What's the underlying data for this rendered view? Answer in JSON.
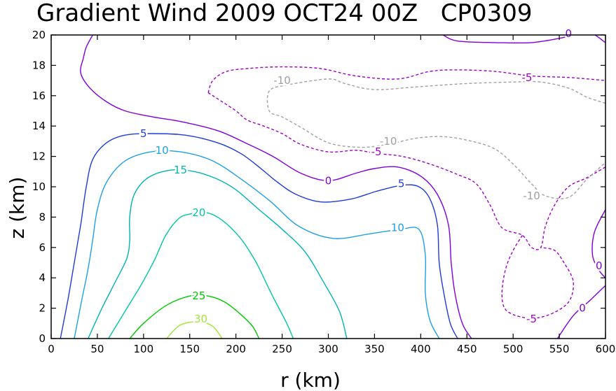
{
  "chart_data": {
    "type": "contour",
    "title": "Gradient Wind 2009 OCT24 00Z   CP0309",
    "xlabel": "r (km)",
    "ylabel": "z (km)",
    "xlim": [
      0,
      600
    ],
    "ylim": [
      0,
      20
    ],
    "xticks": [
      "0",
      "50",
      "100",
      "150",
      "200",
      "250",
      "300",
      "350",
      "400",
      "450",
      "500",
      "550",
      "600"
    ],
    "yticks": [
      "0",
      "2",
      "4",
      "6",
      "8",
      "10",
      "12",
      "14",
      "16",
      "18",
      "20"
    ],
    "grid": false,
    "colors": {
      "30": "#a0e632",
      "25": "#00c800",
      "20": "#00c8a0",
      "15": "#00b4b4",
      "10": "#1ea0e6",
      "5": "#1e3cdc",
      "0": "#8200dc",
      "-5": "#a000c8",
      "-10": "#a0a0a0"
    },
    "contours": [
      {
        "level": 30,
        "label": "30",
        "dashed": false,
        "points": [
          [
            125,
            0
          ],
          [
            140,
            0.9
          ],
          [
            160,
            1.1
          ],
          [
            175,
            0.8
          ],
          [
            185,
            0
          ]
        ],
        "labels": [
          [
            162,
            1.3
          ]
        ]
      },
      {
        "level": 25,
        "label": "25",
        "dashed": false,
        "points": [
          [
            85,
            0
          ],
          [
            100,
            1.0
          ],
          [
            125,
            2.2
          ],
          [
            150,
            2.8
          ],
          [
            170,
            2.8
          ],
          [
            188,
            2.4
          ],
          [
            205,
            1.6
          ],
          [
            218,
            0.8
          ],
          [
            225,
            0
          ]
        ],
        "labels": [
          [
            160,
            2.8
          ]
        ]
      },
      {
        "level": 20,
        "label": "20",
        "dashed": false,
        "points": [
          [
            62,
            0
          ],
          [
            80,
            1.8
          ],
          [
            98,
            3.6
          ],
          [
            112,
            5.2
          ],
          [
            124,
            6.8
          ],
          [
            138,
            7.9
          ],
          [
            150,
            8.2
          ],
          [
            168,
            8.3
          ],
          [
            185,
            7.8
          ],
          [
            205,
            6.6
          ],
          [
            222,
            5.0
          ],
          [
            238,
            3.0
          ],
          [
            255,
            1.0
          ],
          [
            262,
            0
          ]
        ],
        "labels": [
          [
            160,
            8.3
          ]
        ]
      },
      {
        "level": 15,
        "label": "15",
        "dashed": false,
        "points": [
          [
            40,
            0
          ],
          [
            55,
            2.0
          ],
          [
            70,
            3.8
          ],
          [
            82,
            5.3
          ],
          [
            85,
            6.5
          ],
          [
            85,
            8.0
          ],
          [
            90,
            9.5
          ],
          [
            105,
            10.6
          ],
          [
            130,
            11.1
          ],
          [
            155,
            11.0
          ],
          [
            180,
            10.5
          ],
          [
            200,
            9.8
          ],
          [
            225,
            8.5
          ],
          [
            250,
            7.2
          ],
          [
            275,
            5.7
          ],
          [
            295,
            3.7
          ],
          [
            312,
            1.8
          ],
          [
            320,
            0
          ]
        ],
        "labels": [
          [
            140,
            11.1
          ]
        ]
      },
      {
        "level": 10,
        "label": "10",
        "dashed": false,
        "points": [
          [
            25,
            0
          ],
          [
            33,
            2.5
          ],
          [
            40,
            4.6
          ],
          [
            45,
            6.5
          ],
          [
            50,
            8.5
          ],
          [
            60,
            10.3
          ],
          [
            80,
            11.7
          ],
          [
            108,
            12.3
          ],
          [
            140,
            12.3
          ],
          [
            175,
            11.7
          ],
          [
            208,
            10.4
          ],
          [
            238,
            9.0
          ],
          [
            268,
            7.4
          ],
          [
            305,
            6.6
          ],
          [
            345,
            6.9
          ],
          [
            378,
            7.2
          ],
          [
            398,
            7.2
          ],
          [
            405,
            5.5
          ],
          [
            405,
            3.0
          ],
          [
            410,
            1.2
          ],
          [
            420,
            0
          ]
        ],
        "labels": [
          [
            120,
            12.4
          ],
          [
            375,
            7.3
          ]
        ]
      },
      {
        "level": 5,
        "label": "5",
        "dashed": false,
        "points": [
          [
            10,
            0
          ],
          [
            18,
            2.5
          ],
          [
            25,
            5.0
          ],
          [
            32,
            7.5
          ],
          [
            38,
            10.0
          ],
          [
            45,
            11.8
          ],
          [
            60,
            12.9
          ],
          [
            80,
            13.4
          ],
          [
            108,
            13.5
          ],
          [
            145,
            13.4
          ],
          [
            180,
            12.9
          ],
          [
            205,
            12.2
          ],
          [
            225,
            11.3
          ],
          [
            245,
            10.3
          ],
          [
            265,
            9.5
          ],
          [
            292,
            9.0
          ],
          [
            325,
            9.2
          ],
          [
            352,
            9.7
          ],
          [
            380,
            10.1
          ],
          [
            398,
            10.0
          ],
          [
            410,
            9.2
          ],
          [
            418,
            7.5
          ],
          [
            420,
            5.0
          ],
          [
            425,
            3.0
          ],
          [
            432,
            1.0
          ],
          [
            440,
            0
          ]
        ],
        "labels": [
          [
            100,
            13.5
          ],
          [
            379,
            10.2
          ]
        ]
      },
      {
        "level": 0,
        "label": "0",
        "dashed": false,
        "points": [
          [
            45,
            20
          ],
          [
            38,
            19.2
          ],
          [
            35,
            18.5
          ],
          [
            32,
            17.5
          ],
          [
            42,
            16.5
          ],
          [
            60,
            15.6
          ],
          [
            80,
            15.0
          ],
          [
            110,
            14.6
          ],
          [
            140,
            14.3
          ],
          [
            180,
            13.7
          ],
          [
            210,
            12.9
          ],
          [
            240,
            12.0
          ],
          [
            270,
            10.9
          ],
          [
            300,
            10.4
          ],
          [
            330,
            10.9
          ],
          [
            350,
            11.2
          ],
          [
            375,
            11.3
          ],
          [
            400,
            10.7
          ],
          [
            418,
            9.5
          ],
          [
            430,
            7.5
          ],
          [
            433,
            5.0
          ],
          [
            437,
            3.0
          ],
          [
            445,
            1.0
          ],
          [
            455,
            0
          ]
        ],
        "labels": [
          [
            300,
            10.4
          ]
        ]
      },
      {
        "level": 0,
        "label": "0",
        "dashed": false,
        "points": [
          [
            424,
            20
          ],
          [
            440,
            19.6
          ],
          [
            480,
            19.5
          ],
          [
            520,
            19.5
          ],
          [
            552,
            19.8
          ],
          [
            580,
            20.2
          ],
          [
            600,
            19.5
          ]
        ],
        "labels": [
          [
            560,
            20.1
          ]
        ]
      },
      {
        "level": 0,
        "label": "0",
        "dashed": false,
        "points": [
          [
            600,
            8.5
          ],
          [
            588,
            7.0
          ],
          [
            586,
            5.5
          ],
          [
            593,
            4.5
          ],
          [
            600,
            4.0
          ]
        ],
        "labels": [
          [
            593,
            4.8
          ]
        ]
      },
      {
        "level": 0,
        "label": "0",
        "dashed": false,
        "points": [
          [
            548,
            0
          ],
          [
            565,
            1.5
          ],
          [
            583,
            2.5
          ],
          [
            600,
            3.5
          ]
        ],
        "labels": [
          [
            575,
            2.0
          ]
        ]
      },
      {
        "level": -5,
        "label": "-5",
        "dashed": true,
        "points": [
          [
            170,
            16.2
          ],
          [
            175,
            17.0
          ],
          [
            190,
            17.6
          ],
          [
            215,
            17.8
          ],
          [
            248,
            17.9
          ],
          [
            290,
            17.8
          ],
          [
            330,
            17.3
          ],
          [
            375,
            17.1
          ],
          [
            410,
            17.6
          ],
          [
            440,
            17.7
          ],
          [
            480,
            17.6
          ],
          [
            520,
            17.3
          ],
          [
            560,
            17.2
          ],
          [
            600,
            17.0
          ]
        ],
        "labels": [
          [
            515,
            17.2
          ]
        ]
      },
      {
        "level": -5,
        "label": "-5",
        "dashed": true,
        "points": [
          [
            170,
            16.2
          ],
          [
            180,
            15.8
          ],
          [
            200,
            15.0
          ],
          [
            212,
            14.4
          ],
          [
            230,
            14.0
          ],
          [
            250,
            13.5
          ],
          [
            270,
            12.8
          ],
          [
            300,
            12.3
          ],
          [
            330,
            12.4
          ],
          [
            352,
            12.2
          ],
          [
            380,
            12.0
          ],
          [
            410,
            11.5
          ],
          [
            440,
            10.8
          ],
          [
            460,
            10.2
          ],
          [
            475,
            8.8
          ],
          [
            488,
            7.3
          ],
          [
            510,
            6.8
          ],
          [
            520,
            6.0
          ],
          [
            530,
            6.0
          ],
          [
            535,
            7.4
          ],
          [
            545,
            8.8
          ],
          [
            560,
            10.0
          ],
          [
            580,
            10.6
          ],
          [
            600,
            11.3
          ]
        ],
        "labels": [
          [
            352,
            12.3
          ]
        ]
      },
      {
        "level": -5,
        "label": "-5",
        "dashed": true,
        "points": [
          [
            510,
            6.8
          ],
          [
            500,
            5.8
          ],
          [
            492,
            4.6
          ],
          [
            488,
            3.0
          ],
          [
            492,
            1.9
          ],
          [
            510,
            1.4
          ],
          [
            530,
            1.4
          ],
          [
            550,
            1.9
          ],
          [
            562,
            2.6
          ],
          [
            565,
            3.8
          ],
          [
            555,
            5.0
          ],
          [
            545,
            5.8
          ],
          [
            530,
            6.0
          ]
        ],
        "labels": [
          [
            520,
            1.3
          ]
        ]
      },
      {
        "level": -10,
        "label": "-10",
        "dashed": true,
        "points": [
          [
            600,
            15.5
          ],
          [
            580,
            15.9
          ],
          [
            560,
            16.5
          ],
          [
            530,
            16.9
          ],
          [
            500,
            16.9
          ],
          [
            450,
            16.8
          ],
          [
            400,
            16.6
          ],
          [
            350,
            16.4
          ],
          [
            318,
            16.8
          ],
          [
            300,
            17.1
          ],
          [
            255,
            16.7
          ],
          [
            236,
            16.3
          ],
          [
            236,
            15.0
          ],
          [
            250,
            14.6
          ],
          [
            268,
            14.0
          ],
          [
            300,
            12.9
          ],
          [
            335,
            12.6
          ],
          [
            365,
            12.8
          ],
          [
            395,
            13.2
          ],
          [
            425,
            13.3
          ],
          [
            455,
            13.0
          ],
          [
            480,
            12.5
          ],
          [
            500,
            11.5
          ],
          [
            520,
            10.2
          ],
          [
            535,
            9.4
          ],
          [
            560,
            9.3
          ],
          [
            580,
            10.5
          ],
          [
            600,
            11.6
          ]
        ],
        "labels": [
          [
            250,
            17.0
          ],
          [
            365,
            13.0
          ],
          [
            520,
            9.4
          ]
        ]
      }
    ]
  }
}
